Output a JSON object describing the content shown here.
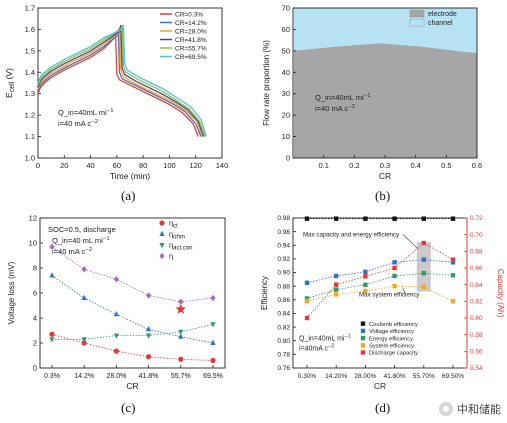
{
  "captions": {
    "a": "(a)",
    "b": "(b)",
    "c": "(c)",
    "d": "(d)"
  },
  "watermark": "中和储能",
  "chart_data": [
    {
      "id": "a",
      "type": "line",
      "xlabel": "Time (min)",
      "ylabel": "E_cell (V)",
      "ylabel_main": "E",
      "ylabel_sub": "cell",
      "ylabel_unit": " (V)",
      "xlim": [
        0,
        140
      ],
      "ylim": [
        1.0,
        1.7
      ],
      "xticks": [
        0,
        20,
        40,
        60,
        80,
        100,
        120,
        140
      ],
      "yticks": [
        1.0,
        1.1,
        1.2,
        1.3,
        1.4,
        1.5,
        1.6,
        1.7
      ],
      "xtick_labels": [
        "0",
        "20",
        "40",
        "60",
        "80",
        "100",
        "120",
        "140"
      ],
      "ytick_labels": [
        "1.0",
        "1.1",
        "1.2",
        "1.3",
        "1.4",
        "1.5",
        "1.6",
        "1.7"
      ],
      "annotation_1": "Q_in=40mL min-1",
      "annotation_2": "i=40 mA cm-2",
      "legend_position": "top-right",
      "series": [
        {
          "name": "CR=0.3%",
          "color": "#e0412f",
          "x": [
            0,
            2,
            5,
            10,
            20,
            30,
            40,
            50,
            58,
            59,
            60,
            62,
            70,
            80,
            90,
            100,
            110,
            118,
            122
          ],
          "y": [
            1.3,
            1.33,
            1.35,
            1.375,
            1.41,
            1.44,
            1.47,
            1.51,
            1.56,
            1.59,
            1.39,
            1.365,
            1.34,
            1.31,
            1.28,
            1.25,
            1.21,
            1.16,
            1.1
          ]
        },
        {
          "name": "CR=14.2%",
          "color": "#4472c4",
          "x": [
            0,
            2,
            5,
            10,
            20,
            30,
            40,
            50,
            60,
            61,
            62,
            64,
            72,
            82,
            92,
            102,
            112,
            120,
            124
          ],
          "y": [
            1.31,
            1.34,
            1.36,
            1.385,
            1.42,
            1.45,
            1.48,
            1.52,
            1.57,
            1.6,
            1.4,
            1.37,
            1.345,
            1.315,
            1.285,
            1.255,
            1.215,
            1.16,
            1.1
          ]
        },
        {
          "name": "CR=28.0%",
          "color": "#f5a623",
          "x": [
            0,
            2,
            5,
            10,
            20,
            30,
            40,
            50,
            61,
            62,
            63,
            65,
            73,
            83,
            93,
            103,
            113,
            121,
            125
          ],
          "y": [
            1.32,
            1.35,
            1.37,
            1.395,
            1.43,
            1.46,
            1.49,
            1.53,
            1.58,
            1.61,
            1.41,
            1.38,
            1.35,
            1.32,
            1.29,
            1.26,
            1.22,
            1.17,
            1.1
          ]
        },
        {
          "name": "CR=41.8%",
          "color": "#5a3f8a",
          "x": [
            0,
            2,
            5,
            10,
            20,
            30,
            40,
            50,
            62,
            63,
            64,
            66,
            74,
            84,
            94,
            104,
            114,
            122,
            126
          ],
          "y": [
            1.33,
            1.36,
            1.38,
            1.405,
            1.44,
            1.47,
            1.5,
            1.54,
            1.59,
            1.62,
            1.42,
            1.39,
            1.36,
            1.33,
            1.3,
            1.265,
            1.225,
            1.17,
            1.1
          ]
        },
        {
          "name": "CR=55.7%",
          "color": "#8bc34a",
          "x": [
            0,
            2,
            5,
            10,
            20,
            30,
            40,
            50,
            63,
            64,
            65,
            67,
            75,
            85,
            95,
            105,
            115,
            123,
            127
          ],
          "y": [
            1.34,
            1.37,
            1.39,
            1.415,
            1.45,
            1.48,
            1.51,
            1.55,
            1.6,
            1.62,
            1.43,
            1.4,
            1.37,
            1.34,
            1.31,
            1.27,
            1.23,
            1.17,
            1.1
          ]
        },
        {
          "name": "CR=69.5%",
          "color": "#4fc3d9",
          "x": [
            0,
            2,
            5,
            10,
            20,
            30,
            40,
            50,
            64,
            65,
            66,
            68,
            76,
            86,
            96,
            106,
            116,
            124,
            128
          ],
          "y": [
            1.35,
            1.38,
            1.4,
            1.425,
            1.46,
            1.49,
            1.52,
            1.56,
            1.6,
            1.62,
            1.44,
            1.41,
            1.38,
            1.35,
            1.32,
            1.28,
            1.24,
            1.18,
            1.1
          ]
        }
      ]
    },
    {
      "id": "b",
      "type": "area",
      "xlabel": "CR",
      "ylabel": "Flow rate proportion (%)",
      "xlim": [
        0.0,
        0.6
      ],
      "ylim": [
        0,
        70
      ],
      "xticks": [
        0.1,
        0.2,
        0.3,
        0.4,
        0.5,
        0.6
      ],
      "yticks": [
        0,
        10,
        20,
        30,
        40,
        50,
        60,
        70
      ],
      "xtick_labels": [
        "0.1",
        "0.2",
        "0.3",
        "0.4",
        "0.5",
        "0.6"
      ],
      "ytick_labels": [
        "0",
        "10",
        "20",
        "30",
        "40",
        "50",
        "60",
        "70"
      ],
      "annotation_1": "Q_in=40mL min-1",
      "annotation_2": "i=40 mA cm-2",
      "legend_position": "top-right",
      "series": [
        {
          "name": "electrode",
          "color": "#a6a6a6",
          "x": [
            0.003,
            0.142,
            0.28,
            0.418,
            0.557,
            0.6
          ],
          "y": [
            50,
            52,
            53.5,
            52,
            49.5,
            49
          ]
        },
        {
          "name": "channel",
          "color": "#b7e2f3",
          "x": [
            0.003,
            0.6
          ],
          "y": [
            70,
            70
          ]
        }
      ]
    },
    {
      "id": "c",
      "type": "line",
      "xlabel": "CR",
      "ylabel": "Voltage loss (mV)",
      "ylim": [
        0,
        12
      ],
      "yticks": [
        0,
        2,
        4,
        6,
        8,
        10,
        12
      ],
      "ytick_labels": [
        "0",
        "2",
        "4",
        "6",
        "8",
        "10",
        "12"
      ],
      "categories": [
        "0.3%",
        "14.2%",
        "28.0%",
        "41.8%",
        "55.7%",
        "69.5%"
      ],
      "annotation_1": "SOC=0.5, discharge",
      "annotation_2": "Q_in=40 mL min-1",
      "annotation_3": "i=40 mA cm-2",
      "legend_position": "top-right",
      "star": {
        "category_index": 4,
        "value": 4.7,
        "color": "#e53935"
      },
      "series": [
        {
          "name": "η_ct",
          "legend_main": "η",
          "legend_sub": "ct",
          "color": "#e53935",
          "marker": "circle",
          "values": [
            2.7,
            2.0,
            1.35,
            0.9,
            0.7,
            0.6
          ]
        },
        {
          "name": "η_ohm",
          "legend_main": "η",
          "legend_sub": "ohm",
          "color": "#2e6fd1",
          "marker": "triangle-up",
          "values": [
            7.4,
            5.6,
            4.3,
            3.1,
            2.5,
            2.0
          ]
        },
        {
          "name": "η_act,con",
          "legend_main": "η",
          "legend_sub": "act,con",
          "color": "#2e9b6b",
          "marker": "triangle-down",
          "values": [
            2.3,
            2.3,
            2.6,
            2.6,
            2.9,
            3.5
          ]
        },
        {
          "name": "η",
          "legend_main": "η",
          "legend_sub": "",
          "color": "#b05fcf",
          "marker": "diamond",
          "values": [
            9.7,
            7.9,
            7.1,
            5.8,
            5.3,
            5.6
          ]
        }
      ]
    },
    {
      "id": "d",
      "type": "line",
      "xlabel": "CR",
      "ylabel": "Efficiency",
      "ylabel_right": "Capacity (Ah)",
      "ylim": [
        0.76,
        0.98
      ],
      "ylim_right": [
        0.54,
        0.72
      ],
      "yticks": [
        0.76,
        0.78,
        0.8,
        0.82,
        0.84,
        0.86,
        0.88,
        0.9,
        0.92,
        0.94,
        0.96,
        0.98
      ],
      "ytick_labels": [
        "0.76",
        "0.78",
        "0.80",
        "0.82",
        "0.84",
        "0.86",
        "0.88",
        "0.90",
        "0.92",
        "0.94",
        "0.96",
        "0.98"
      ],
      "yticks_right": [
        0.54,
        0.56,
        0.58,
        0.6,
        0.62,
        0.64,
        0.66,
        0.68,
        0.7,
        0.72
      ],
      "ytick_labels_right": [
        "0.54",
        "0.56",
        "0.58",
        "0.60",
        "0.62",
        "0.64",
        "0.66",
        "0.68",
        "0.70",
        "0.72"
      ],
      "categories": [
        "0.30%",
        "14.20%",
        "28.00%",
        "41.80%",
        "55.70%",
        "69.50%"
      ],
      "annotation_1": "Max capacity and energy efficiency",
      "annotation_2": "Max system efficiency",
      "annotation_3": "Q_in=40mL min-1",
      "annotation_4": "i=40mA cm-2",
      "legend_position": "bottom-right",
      "series": [
        {
          "name": "Coulomb efficiency",
          "color": "#111111",
          "axis": "left",
          "values": [
            0.979,
            0.979,
            0.979,
            0.979,
            0.979,
            0.979
          ]
        },
        {
          "name": "Voltage efficiency",
          "color": "#2e6fd1",
          "axis": "left",
          "values": [
            0.885,
            0.895,
            0.901,
            0.915,
            0.919,
            0.915
          ]
        },
        {
          "name": "Energy efficiency",
          "color": "#2e9b6b",
          "axis": "left",
          "values": [
            0.862,
            0.875,
            0.882,
            0.895,
            0.899,
            0.896
          ]
        },
        {
          "name": "System efficiency",
          "color": "#f5a623",
          "axis": "left",
          "values": [
            0.858,
            0.868,
            0.873,
            0.88,
            0.879,
            0.858
          ]
        },
        {
          "name": "Discharge capacity",
          "color": "#e53935",
          "axis": "right",
          "values": [
            0.6,
            0.64,
            0.65,
            0.66,
            0.69,
            0.67
          ]
        }
      ]
    }
  ]
}
